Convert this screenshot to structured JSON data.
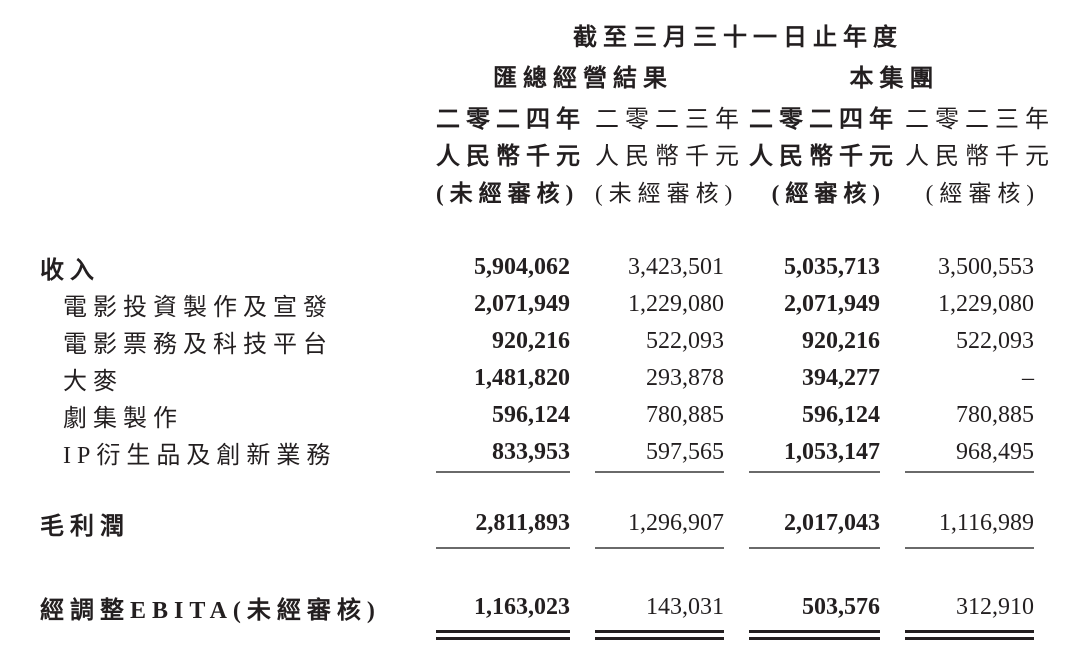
{
  "table": {
    "title": "截至三月三十一日止年度",
    "groups": [
      {
        "label": "匯總經營結果"
      },
      {
        "label": "本集團"
      }
    ],
    "columns": [
      {
        "year": "二零二四年",
        "currency": "人民幣千元",
        "audit": "(未經審核)",
        "emphasis": true
      },
      {
        "year": "二零二三年",
        "currency": "人民幣千元",
        "audit": "(未經審核)",
        "emphasis": false
      },
      {
        "year": "二零二四年",
        "currency": "人民幣千元",
        "audit": "(經審核)",
        "emphasis": true
      },
      {
        "year": "二零二三年",
        "currency": "人民幣千元",
        "audit": "(經審核)",
        "emphasis": false
      }
    ],
    "rows": [
      {
        "label": "收入",
        "indent": false,
        "bold_label": true,
        "values": [
          "5,904,062",
          "3,423,501",
          "5,035,713",
          "3,500,553"
        ]
      },
      {
        "label": "電影投資製作及宣發",
        "indent": true,
        "bold_label": false,
        "values": [
          "2,071,949",
          "1,229,080",
          "2,071,949",
          "1,229,080"
        ]
      },
      {
        "label": "電影票務及科技平台",
        "indent": true,
        "bold_label": false,
        "values": [
          "920,216",
          "522,093",
          "920,216",
          "522,093"
        ]
      },
      {
        "label": "大麥",
        "indent": true,
        "bold_label": false,
        "values": [
          "1,481,820",
          "293,878",
          "394,277",
          "–"
        ]
      },
      {
        "label": "劇集製作",
        "indent": true,
        "bold_label": false,
        "values": [
          "596,124",
          "780,885",
          "596,124",
          "780,885"
        ]
      },
      {
        "label": "IP衍生品及創新業務",
        "indent": true,
        "bold_label": false,
        "values": [
          "833,953",
          "597,565",
          "1,053,147",
          "968,495"
        ]
      }
    ],
    "gross_profit": {
      "label": "毛利潤",
      "values": [
        "2,811,893",
        "1,296,907",
        "2,017,043",
        "1,116,989"
      ]
    },
    "adjusted_ebita": {
      "label": "經調整EBITA(未經審核)",
      "values": [
        "1,163,023",
        "143,031",
        "503,576",
        "312,910"
      ]
    }
  }
}
